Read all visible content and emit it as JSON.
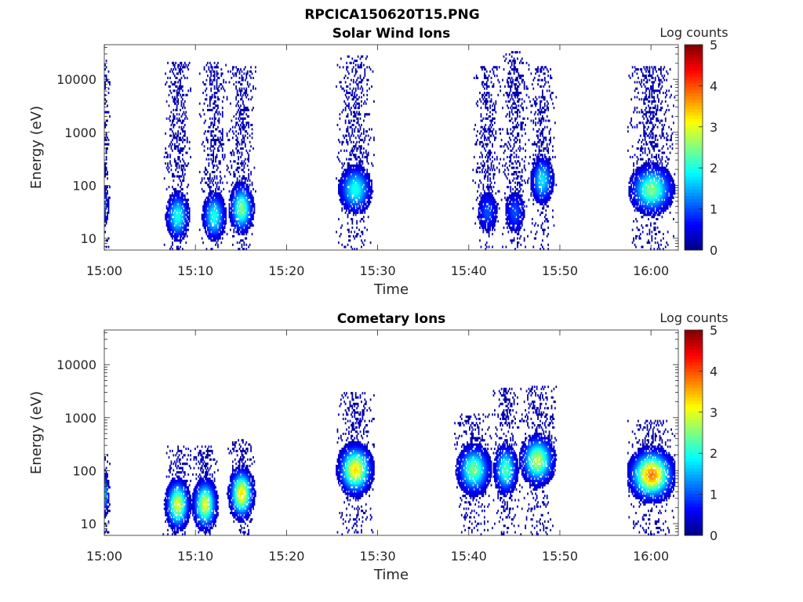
{
  "figure_title": "RPCICA150620T15.PNG",
  "chart_data": [
    {
      "type": "heatmap",
      "title": "Solar Wind Ions",
      "xlabel": "Time",
      "ylabel": "Energy (eV)",
      "y_scale": "log",
      "ylim": [
        6,
        45000
      ],
      "xlim": [
        "15:00",
        "16:03"
      ],
      "x_ticks": [
        "15:00",
        "15:10",
        "15:20",
        "15:30",
        "15:40",
        "15:50",
        "16:00"
      ],
      "y_ticks": [
        "10",
        "100",
        "1000",
        "10000"
      ],
      "colorbar": {
        "label": "Log counts",
        "ticks": [
          "0",
          "1",
          "2",
          "3",
          "4",
          "5"
        ],
        "range": [
          0,
          5
        ],
        "colormap": "jet"
      },
      "bursts": [
        {
          "start": "15:00",
          "end": "15:00",
          "e_low": 6,
          "e_high": 20000,
          "core_e": 40,
          "peak": 1.0
        },
        {
          "start": "15:07",
          "end": "15:09",
          "e_low": 6,
          "e_high": 18000,
          "core_e": 25,
          "peak": 2.0
        },
        {
          "start": "15:11",
          "end": "15:13",
          "e_low": 6,
          "e_high": 18000,
          "core_e": 25,
          "peak": 2.0
        },
        {
          "start": "15:14",
          "end": "15:16",
          "e_low": 6,
          "e_high": 15000,
          "core_e": 35,
          "peak": 2.5
        },
        {
          "start": "15:26",
          "end": "15:29",
          "e_low": 6,
          "e_high": 25000,
          "core_e": 80,
          "peak": 2.0
        },
        {
          "start": "15:41",
          "end": "15:43",
          "e_low": 6,
          "e_high": 15000,
          "core_e": 30,
          "peak": 1.0
        },
        {
          "start": "15:44",
          "end": "15:46",
          "e_low": 6,
          "e_high": 30000,
          "core_e": 30,
          "peak": 1.0
        },
        {
          "start": "15:47",
          "end": "15:49",
          "e_low": 6,
          "e_high": 15000,
          "core_e": 120,
          "peak": 1.8
        },
        {
          "start": "15:58",
          "end": "16:02",
          "e_low": 6,
          "e_high": 15000,
          "core_e": 80,
          "peak": 2.5
        }
      ]
    },
    {
      "type": "heatmap",
      "title": "Cometary Ions",
      "xlabel": "Time",
      "ylabel": "Energy (eV)",
      "y_scale": "log",
      "ylim": [
        6,
        45000
      ],
      "xlim": [
        "15:00",
        "16:03"
      ],
      "x_ticks": [
        "15:00",
        "15:10",
        "15:20",
        "15:30",
        "15:40",
        "15:50",
        "16:00"
      ],
      "y_ticks": [
        "10",
        "100",
        "1000",
        "10000"
      ],
      "colorbar": {
        "label": "Log counts",
        "ticks": [
          "0",
          "1",
          "2",
          "3",
          "4",
          "5"
        ],
        "range": [
          0,
          5
        ],
        "colormap": "jet"
      },
      "bursts": [
        {
          "start": "15:00",
          "end": "15:00",
          "e_low": 6,
          "e_high": 180,
          "core_e": 35,
          "peak": 1.5
        },
        {
          "start": "15:07",
          "end": "15:09",
          "e_low": 6,
          "e_high": 250,
          "core_e": 22,
          "peak": 3.0
        },
        {
          "start": "15:10",
          "end": "15:12",
          "e_low": 6,
          "e_high": 250,
          "core_e": 22,
          "peak": 3.0
        },
        {
          "start": "15:14",
          "end": "15:16",
          "e_low": 6,
          "e_high": 350,
          "core_e": 35,
          "peak": 3.3
        },
        {
          "start": "15:26",
          "end": "15:29",
          "e_low": 6,
          "e_high": 2500,
          "core_e": 100,
          "peak": 3.3
        },
        {
          "start": "15:39",
          "end": "15:42",
          "e_low": 6,
          "e_high": 1000,
          "core_e": 100,
          "peak": 2.5
        },
        {
          "start": "15:43",
          "end": "15:45",
          "e_low": 6,
          "e_high": 3000,
          "core_e": 100,
          "peak": 2.3
        },
        {
          "start": "15:46",
          "end": "15:49",
          "e_low": 6,
          "e_high": 3500,
          "core_e": 150,
          "peak": 2.8
        },
        {
          "start": "15:58",
          "end": "16:02",
          "e_low": 6,
          "e_high": 800,
          "core_e": 80,
          "peak": 3.8
        }
      ]
    }
  ]
}
